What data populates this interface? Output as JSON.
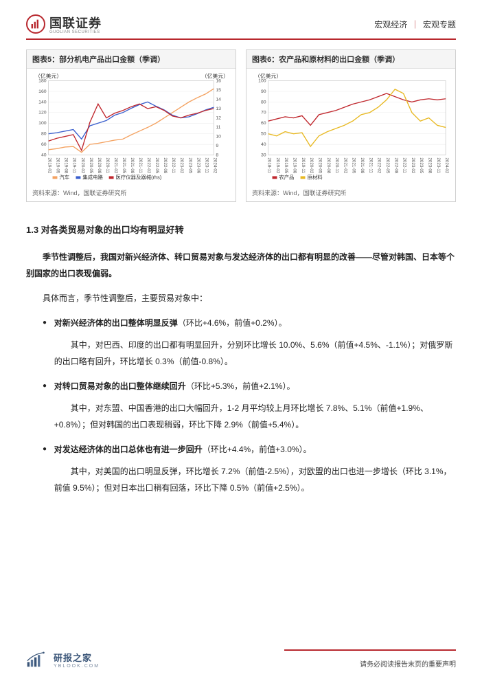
{
  "header": {
    "company_cn": "国联证券",
    "company_en": "GUOLIAN SECURITIES",
    "crumb_left": "宏观经济",
    "crumb_right": "宏观专题"
  },
  "chart5": {
    "title": "图表5：部分机电产品出口金额（季调）",
    "type": "line",
    "y_left_label": "（亿美元）",
    "y_right_label": "（亿美元）",
    "y_left_ticks": [
      40,
      60,
      80,
      100,
      120,
      140,
      160,
      180
    ],
    "y_right_ticks": [
      8,
      9,
      10,
      11,
      12,
      13,
      14,
      15,
      16
    ],
    "ylim_left": [
      40,
      180
    ],
    "ylim_right": [
      8,
      16
    ],
    "x_labels": [
      "2019-02",
      "2019-05",
      "2019-08",
      "2019-11",
      "2020-02",
      "2020-05",
      "2020-08",
      "2020-11",
      "2021-02",
      "2021-05",
      "2021-08",
      "2021-11",
      "2022-02",
      "2022-05",
      "2022-08",
      "2022-11",
      "2023-02",
      "2023-05",
      "2023-08",
      "2023-11",
      "2024-02"
    ],
    "series": [
      {
        "name": "汽车",
        "color": "#f4a261",
        "axis": "left",
        "values": [
          50,
          52,
          55,
          56,
          45,
          60,
          62,
          65,
          68,
          70,
          78,
          85,
          92,
          100,
          110,
          120,
          130,
          140,
          148,
          155,
          165
        ]
      },
      {
        "name": "集成电路",
        "color": "#3a5fcd",
        "axis": "left",
        "values": [
          80,
          82,
          85,
          88,
          70,
          95,
          100,
          105,
          115,
          120,
          128,
          135,
          140,
          132,
          125,
          115,
          110,
          112,
          118,
          125,
          130
        ]
      },
      {
        "name": "医疗仪器及器械(rhs)",
        "color": "#c0282e",
        "axis": "right",
        "values": [
          9.5,
          9.8,
          10,
          10.2,
          8.5,
          11.5,
          13.5,
          12,
          12.5,
          12.8,
          13.2,
          13.5,
          13,
          13.2,
          12.8,
          12.2,
          12,
          12.3,
          12.5,
          12.8,
          13
        ]
      }
    ],
    "legend_marker": "square",
    "source": "资料来源：Wind，国联证券研究所",
    "background_color": "#ffffff",
    "grid_color": "#e8e8e8",
    "line_width": 1.4
  },
  "chart6": {
    "title": "图表6：农产品和原材料的出口金额（季调）",
    "type": "line",
    "y_left_label": "（亿美元）",
    "y_left_ticks": [
      30,
      40,
      50,
      60,
      70,
      80,
      90,
      100
    ],
    "ylim_left": [
      30,
      100
    ],
    "x_labels": [
      "2018-11",
      "2019-02",
      "2019-05",
      "2019-08",
      "2019-11",
      "2020-02",
      "2020-05",
      "2020-08",
      "2020-11",
      "2021-02",
      "2021-05",
      "2021-08",
      "2021-11",
      "2022-02",
      "2022-05",
      "2022-08",
      "2022-11",
      "2023-02",
      "2023-05",
      "2023-08",
      "2023-11",
      "2024-02"
    ],
    "series": [
      {
        "name": "农产品",
        "color": "#c0282e",
        "axis": "left",
        "values": [
          62,
          64,
          66,
          65,
          67,
          58,
          68,
          70,
          72,
          75,
          78,
          80,
          82,
          85,
          88,
          85,
          82,
          80,
          82,
          83,
          82,
          83
        ]
      },
      {
        "name": "原材料",
        "color": "#e8b923",
        "axis": "left",
        "values": [
          50,
          48,
          52,
          50,
          51,
          38,
          48,
          52,
          55,
          58,
          62,
          68,
          70,
          75,
          82,
          92,
          88,
          70,
          62,
          65,
          58,
          56
        ]
      }
    ],
    "legend_marker": "square",
    "source": "资料来源：Wind，国联证券研究所",
    "background_color": "#ffffff",
    "grid_color": "#e8e8e8",
    "line_width": 1.4
  },
  "section": {
    "heading": "1.3 对各类贸易对象的出口均有明显好转",
    "lead_bold": "季节性调整后，我国对新兴经济体、转口贸易对象与发达经济体的出口都有明显的改善——尽管对韩国、日本等个别国家的出口表现偏弱。",
    "para2": "具体而言，季节性调整后，主要贸易对象中：",
    "bullets": [
      {
        "head": "对新兴经济体的出口整体明显反弹",
        "tail": "（环比+4.6%，前值+0.2%）。",
        "sub": "其中，对巴西、印度的出口都有明显回升，分别环比增长 10.0%、5.6%（前值+4.5%、-1.1%）；对俄罗斯的出口略有回升，环比增长 0.3%（前值-0.8%）。"
      },
      {
        "head": "对转口贸易对象的出口整体继续回升",
        "tail": "（环比+5.3%，前值+2.1%）。",
        "sub": "其中，对东盟、中国香港的出口大幅回升，1-2 月平均较上月环比增长 7.8%、5.1%（前值+1.9%、+0.8%）；但对韩国的出口表现稍弱，环比下降 2.9%（前值+5.4%）。"
      },
      {
        "head": "对发达经济体的出口总体也有进一步回升",
        "tail": "（环比+4.4%，前值+3.0%）。",
        "sub": "其中，对美国的出口明显反弹，环比增长 7.2%（前值-2.5%），对欧盟的出口也进一步增长（环比 3.1%，前值 9.5%）；但对日本出口稍有回落，环比下降 0.5%（前值+2.5%）。"
      }
    ]
  },
  "footer": {
    "brand_cn": "研报之家",
    "brand_en": "YBLOOK.COM",
    "disclaimer": "请务必阅读报告末页的重要声明"
  }
}
